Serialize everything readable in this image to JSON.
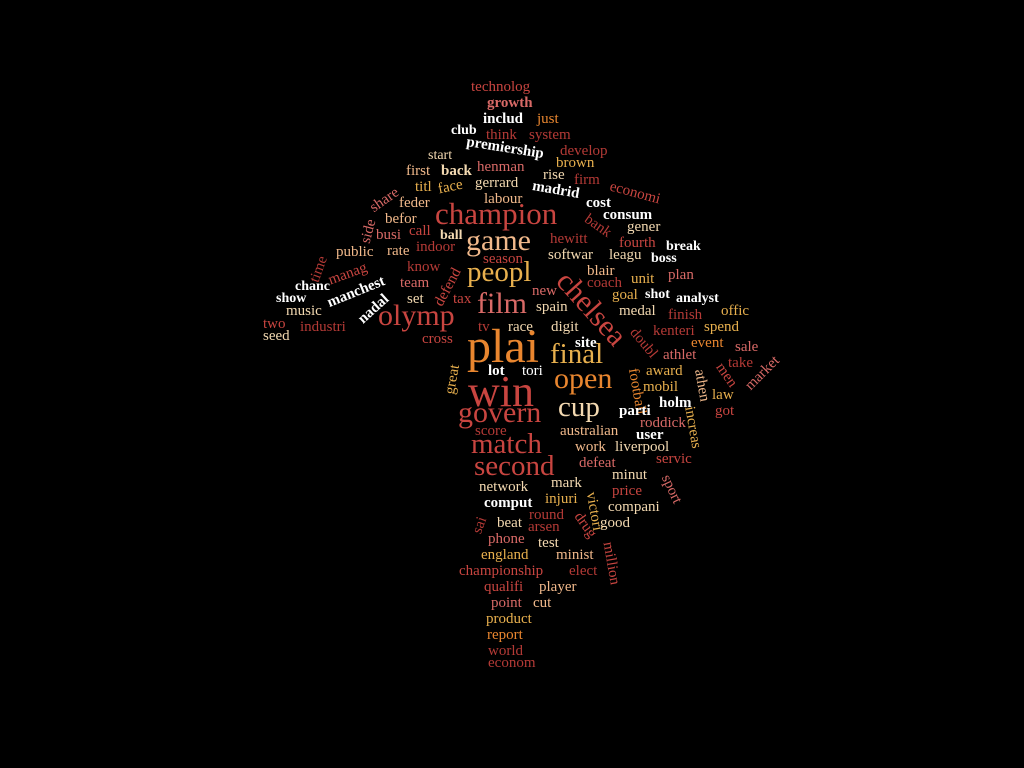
{
  "palette": {
    "background": "#000000",
    "white": "#ffffff",
    "cream": "#f3d9b1",
    "peach": "#f1b98b",
    "tan": "#e8b04e",
    "orange": "#e9862f",
    "salmon": "#e88876",
    "rose": "#d96a67",
    "red": "#c84540",
    "darkred": "#b43a36"
  },
  "words": [
    {
      "text": "technolog",
      "color": "red"
    },
    {
      "text": "growth",
      "color": "rose"
    },
    {
      "text": "includ",
      "color": "white"
    },
    {
      "text": "just",
      "color": "orange"
    },
    {
      "text": "club",
      "color": "white"
    },
    {
      "text": "think",
      "color": "darkred"
    },
    {
      "text": "system",
      "color": "darkred"
    },
    {
      "text": "premiership",
      "color": "white"
    },
    {
      "text": "develop",
      "color": "darkred"
    },
    {
      "text": "start",
      "color": "cream"
    },
    {
      "text": "brown",
      "color": "tan"
    },
    {
      "text": "henman",
      "color": "rose"
    },
    {
      "text": "first",
      "color": "peach"
    },
    {
      "text": "back",
      "color": "cream"
    },
    {
      "text": "rise",
      "color": "cream"
    },
    {
      "text": "firm",
      "color": "darkred"
    },
    {
      "text": "titl",
      "color": "tan"
    },
    {
      "text": "face",
      "color": "tan"
    },
    {
      "text": "gerrard",
      "color": "cream"
    },
    {
      "text": "madrid",
      "color": "white"
    },
    {
      "text": "economi",
      "color": "red"
    },
    {
      "text": "share",
      "color": "rose"
    },
    {
      "text": "feder",
      "color": "peach"
    },
    {
      "text": "labour",
      "color": "peach"
    },
    {
      "text": "cost",
      "color": "white"
    },
    {
      "text": "side",
      "color": "rose"
    },
    {
      "text": "befor",
      "color": "peach"
    },
    {
      "text": "champion",
      "color": "red"
    },
    {
      "text": "consum",
      "color": "white"
    },
    {
      "text": "bank",
      "color": "darkred"
    },
    {
      "text": "call",
      "color": "red"
    },
    {
      "text": "ball",
      "color": "cream"
    },
    {
      "text": "gener",
      "color": "cream"
    },
    {
      "text": "busi",
      "color": "rose"
    },
    {
      "text": "game",
      "color": "peach"
    },
    {
      "text": "hewitt",
      "color": "darkred"
    },
    {
      "text": "fourth",
      "color": "red"
    },
    {
      "text": "break",
      "color": "white"
    },
    {
      "text": "indoor",
      "color": "darkred"
    },
    {
      "text": "public",
      "color": "peach"
    },
    {
      "text": "rate",
      "color": "peach"
    },
    {
      "text": "softwar",
      "color": "cream"
    },
    {
      "text": "leagu",
      "color": "cream"
    },
    {
      "text": "boss",
      "color": "white"
    },
    {
      "text": "time",
      "color": "darkred"
    },
    {
      "text": "season",
      "color": "red"
    },
    {
      "text": "defend",
      "color": "red"
    },
    {
      "text": "chelsea",
      "color": "red"
    },
    {
      "text": "manag",
      "color": "red"
    },
    {
      "text": "know",
      "color": "darkred"
    },
    {
      "text": "peopl",
      "color": "tan"
    },
    {
      "text": "blair",
      "color": "peach"
    },
    {
      "text": "plan",
      "color": "rose"
    },
    {
      "text": "unit",
      "color": "tan"
    },
    {
      "text": "manchest",
      "color": "white"
    },
    {
      "text": "team",
      "color": "rose"
    },
    {
      "text": "coach",
      "color": "darkred"
    },
    {
      "text": "chanc",
      "color": "white"
    },
    {
      "text": "film",
      "color": "rose"
    },
    {
      "text": "new",
      "color": "rose"
    },
    {
      "text": "shot",
      "color": "white"
    },
    {
      "text": "analyst",
      "color": "white"
    },
    {
      "text": "goal",
      "color": "tan"
    },
    {
      "text": "show",
      "color": "white"
    },
    {
      "text": "tax",
      "color": "red"
    },
    {
      "text": "nadal",
      "color": "white"
    },
    {
      "text": "set",
      "color": "cream"
    },
    {
      "text": "music",
      "color": "cream"
    },
    {
      "text": "spain",
      "color": "cream"
    },
    {
      "text": "offic",
      "color": "tan"
    },
    {
      "text": "olymp",
      "color": "red"
    },
    {
      "text": "medal",
      "color": "cream"
    },
    {
      "text": "finish",
      "color": "darkred"
    },
    {
      "text": "two",
      "color": "red"
    },
    {
      "text": "industri",
      "color": "darkred"
    },
    {
      "text": "tv",
      "color": "darkred"
    },
    {
      "text": "race",
      "color": "cream"
    },
    {
      "text": "digit",
      "color": "cream"
    },
    {
      "text": "kenteri",
      "color": "darkred"
    },
    {
      "text": "spend",
      "color": "tan"
    },
    {
      "text": "seed",
      "color": "cream"
    },
    {
      "text": "doubl",
      "color": "darkred"
    },
    {
      "text": "cross",
      "color": "red"
    },
    {
      "text": "plai",
      "color": "orange"
    },
    {
      "text": "final",
      "color": "tan"
    },
    {
      "text": "site",
      "color": "white"
    },
    {
      "text": "athlet",
      "color": "rose"
    },
    {
      "text": "event",
      "color": "orange"
    },
    {
      "text": "sale",
      "color": "rose"
    },
    {
      "text": "take",
      "color": "darkred"
    },
    {
      "text": "market",
      "color": "rose"
    },
    {
      "text": "great",
      "color": "tan"
    },
    {
      "text": "lot",
      "color": "white"
    },
    {
      "text": "tori",
      "color": "white"
    },
    {
      "text": "award",
      "color": "tan"
    },
    {
      "text": "men",
      "color": "red"
    },
    {
      "text": "win",
      "color": "red"
    },
    {
      "text": "open",
      "color": "orange"
    },
    {
      "text": "football",
      "color": "orange"
    },
    {
      "text": "mobil",
      "color": "tan"
    },
    {
      "text": "athen",
      "color": "peach"
    },
    {
      "text": "law",
      "color": "tan"
    },
    {
      "text": "cup",
      "color": "cream"
    },
    {
      "text": "holm",
      "color": "white"
    },
    {
      "text": "got",
      "color": "red"
    },
    {
      "text": "increas",
      "color": "tan"
    },
    {
      "text": "govern",
      "color": "red"
    },
    {
      "text": "parti",
      "color": "white"
    },
    {
      "text": "roddick",
      "color": "rose"
    },
    {
      "text": "score",
      "color": "darkred"
    },
    {
      "text": "australian",
      "color": "peach"
    },
    {
      "text": "user",
      "color": "white"
    },
    {
      "text": "match",
      "color": "red"
    },
    {
      "text": "work",
      "color": "peach"
    },
    {
      "text": "liverpool",
      "color": "cream"
    },
    {
      "text": "second",
      "color": "red"
    },
    {
      "text": "defeat",
      "color": "rose"
    },
    {
      "text": "servic",
      "color": "red"
    },
    {
      "text": "minut",
      "color": "cream"
    },
    {
      "text": "network",
      "color": "cream"
    },
    {
      "text": "mark",
      "color": "cream"
    },
    {
      "text": "victori",
      "color": "tan"
    },
    {
      "text": "sport",
      "color": "rose"
    },
    {
      "text": "price",
      "color": "red"
    },
    {
      "text": "injuri",
      "color": "tan"
    },
    {
      "text": "comput",
      "color": "white"
    },
    {
      "text": "compani",
      "color": "cream"
    },
    {
      "text": "round",
      "color": "darkred"
    },
    {
      "text": "drug",
      "color": "red"
    },
    {
      "text": "sai",
      "color": "darkred"
    },
    {
      "text": "beat",
      "color": "cream"
    },
    {
      "text": "arsen",
      "color": "darkred"
    },
    {
      "text": "good",
      "color": "cream"
    },
    {
      "text": "phone",
      "color": "rose"
    },
    {
      "text": "test",
      "color": "cream"
    },
    {
      "text": "million",
      "color": "red"
    },
    {
      "text": "england",
      "color": "tan"
    },
    {
      "text": "minist",
      "color": "peach"
    },
    {
      "text": "championship",
      "color": "red"
    },
    {
      "text": "elect",
      "color": "darkred"
    },
    {
      "text": "qualifi",
      "color": "red"
    },
    {
      "text": "player",
      "color": "peach"
    },
    {
      "text": "point",
      "color": "rose"
    },
    {
      "text": "cut",
      "color": "peach"
    },
    {
      "text": "product",
      "color": "tan"
    },
    {
      "text": "report",
      "color": "orange"
    },
    {
      "text": "world",
      "color": "darkred"
    },
    {
      "text": "econom",
      "color": "darkred"
    }
  ]
}
